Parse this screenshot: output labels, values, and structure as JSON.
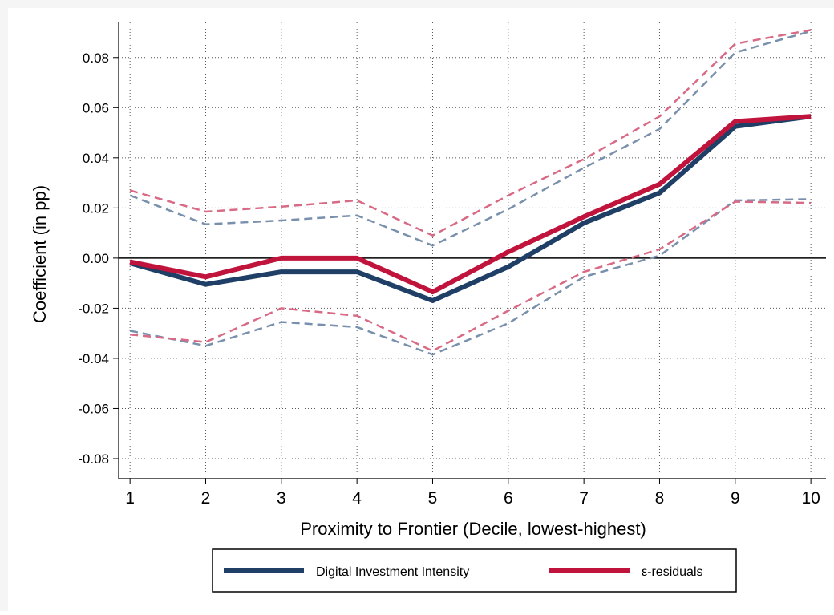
{
  "chart_data": {
    "type": "line",
    "title": "",
    "xlabel": "Proximity to Frontier (Decile, lowest-highest)",
    "ylabel": "Coefficient (in pp)",
    "x": [
      1,
      2,
      3,
      4,
      5,
      6,
      7,
      8,
      9,
      10
    ],
    "x_ticks": [
      "1",
      "2",
      "3",
      "4",
      "5",
      "6",
      "7",
      "8",
      "9",
      "10"
    ],
    "xlim": [
      0.85,
      10.2
    ],
    "ylim": [
      -0.088,
      0.094
    ],
    "y_ticks": [
      "-0.08",
      "-0.06",
      "-0.04",
      "-0.02",
      "0.00",
      "0.02",
      "0.04",
      "0.06",
      "0.08"
    ],
    "y_tick_values": [
      -0.08,
      -0.06,
      -0.04,
      -0.02,
      0.0,
      0.02,
      0.04,
      0.06,
      0.08
    ],
    "grid": true,
    "zero_line": true,
    "legend_position": "bottom",
    "series": [
      {
        "name": "Digital Investment Intensity",
        "color": "#1f3f66",
        "values": [
          -0.002,
          -0.0105,
          -0.0055,
          -0.0055,
          -0.017,
          -0.0035,
          0.014,
          0.026,
          0.0525,
          0.0565
        ],
        "ci_upper": [
          0.025,
          0.0135,
          0.015,
          0.017,
          0.005,
          0.0195,
          0.036,
          0.0515,
          0.082,
          0.0905
        ],
        "ci_lower": [
          -0.029,
          -0.035,
          -0.0255,
          -0.0275,
          -0.0385,
          -0.026,
          -0.0075,
          0.001,
          0.023,
          0.0235
        ],
        "ci_color": "#7990ad"
      },
      {
        "name": "ε-residuals",
        "color": "#c0143c",
        "values": [
          -0.0015,
          -0.0075,
          0.0,
          0.0,
          -0.0135,
          0.0025,
          0.0165,
          0.0295,
          0.0545,
          0.0565
        ],
        "ci_upper": [
          0.027,
          0.0185,
          0.0205,
          0.023,
          0.009,
          0.025,
          0.0395,
          0.0565,
          0.0855,
          0.091
        ],
        "ci_lower": [
          -0.0305,
          -0.0335,
          -0.02,
          -0.023,
          -0.037,
          -0.021,
          -0.0055,
          0.0035,
          0.0225,
          0.022
        ],
        "ci_color": "#d86a86"
      }
    ]
  }
}
